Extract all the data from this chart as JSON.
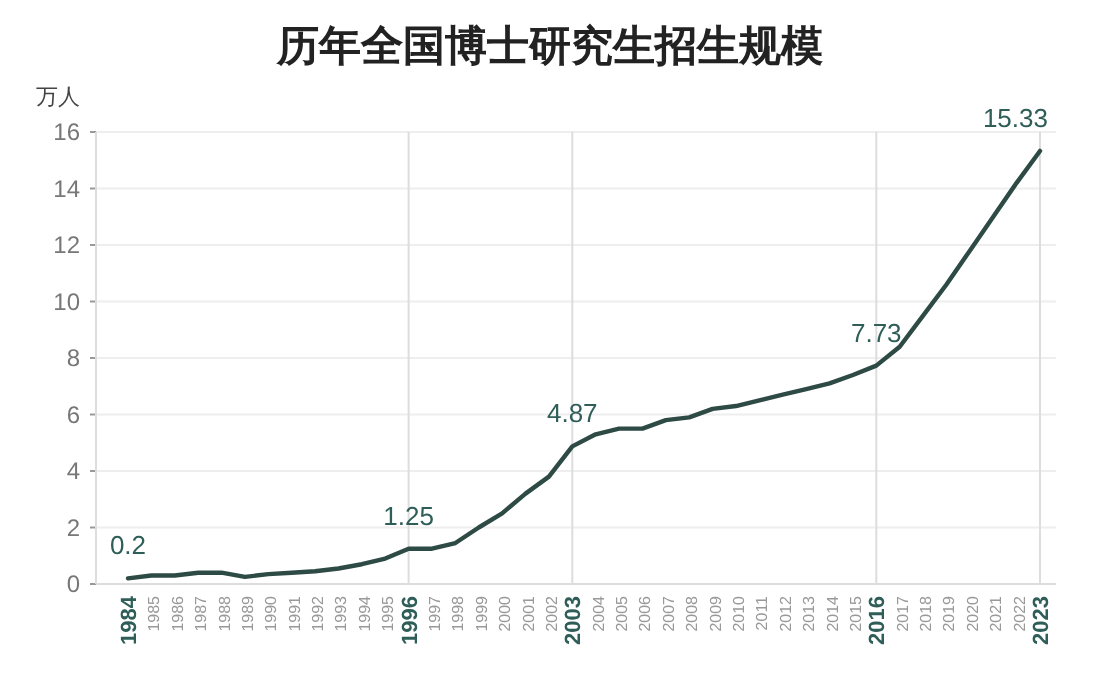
{
  "chart_data": {
    "type": "line",
    "title": "历年全国博士研究生招生规模",
    "ylabel": "万人",
    "categories": [
      "1984",
      "1985",
      "1986",
      "1987",
      "1988",
      "1989",
      "1990",
      "1991",
      "1992",
      "1993",
      "1994",
      "1995",
      "1996",
      "1997",
      "1998",
      "1999",
      "2000",
      "2001",
      "2002",
      "2003",
      "2004",
      "2005",
      "2006",
      "2007",
      "2008",
      "2009",
      "2010",
      "2011",
      "2012",
      "2013",
      "2014",
      "2015",
      "2016",
      "2017",
      "2018",
      "2019",
      "2020",
      "2021",
      "2022",
      "2023"
    ],
    "series": [
      {
        "color": "#2e4a45",
        "values": [
          0.2,
          0.3,
          0.3,
          0.4,
          0.4,
          0.25,
          0.35,
          0.4,
          0.45,
          0.55,
          0.7,
          0.9,
          1.25,
          1.25,
          1.45,
          2.0,
          2.5,
          3.2,
          3.8,
          4.87,
          5.3,
          5.5,
          5.5,
          5.8,
          5.9,
          6.2,
          6.3,
          6.5,
          6.7,
          6.9,
          7.1,
          7.4,
          7.73,
          8.4,
          9.5,
          10.6,
          11.8,
          13.0,
          14.2,
          15.33
        ]
      }
    ],
    "ylim": [
      0,
      16
    ],
    "yticks": [
      0,
      2,
      4,
      6,
      8,
      10,
      12,
      14,
      16
    ],
    "grid": "y",
    "marker": "none",
    "line_style": "solid",
    "ref_lines": [
      {
        "axis": "x",
        "value": "1996",
        "color": "#dddddd"
      },
      {
        "axis": "x",
        "value": "2003",
        "color": "#dddddd"
      },
      {
        "axis": "x",
        "value": "2016",
        "color": "#dddddd"
      },
      {
        "axis": "x",
        "value": "2023",
        "color": "#dddddd"
      }
    ],
    "annotations": [
      {
        "text": "0.2",
        "x": "1984",
        "y": 0.2
      },
      {
        "text": "1.25",
        "x": "1996",
        "y": 1.25
      },
      {
        "text": "4.87",
        "x": "2003",
        "y": 4.87
      },
      {
        "text": "7.73",
        "x": "2016",
        "y": 7.73
      },
      {
        "text": "15.33",
        "x": "2023",
        "y": 15.33
      }
    ]
  }
}
